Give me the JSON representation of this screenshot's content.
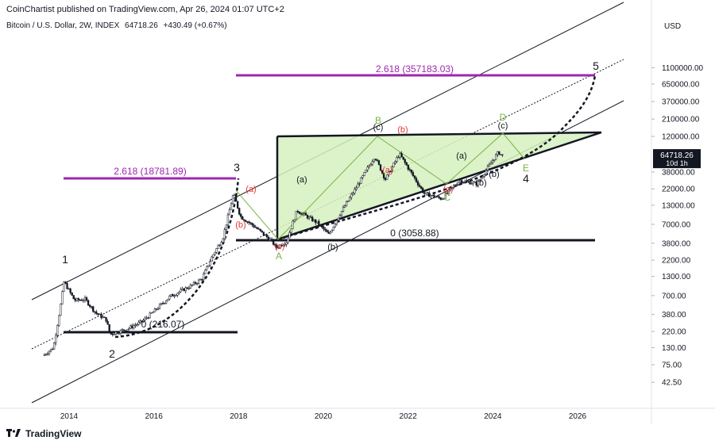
{
  "header": {
    "publisher_line": "CoinChartist published on TradingView.com, Apr 26, 2024 01:07 UTC+2"
  },
  "symbol": {
    "name": "Bitcoin / U.S. Dollar, 2W, INDEX",
    "price": "64718.26",
    "change": "+430.49 (+0.67%)"
  },
  "footer": {
    "brand": "TradingView",
    "logo_icon": "tradingview-logo-icon"
  },
  "colors": {
    "fib_line": "#9c27b0",
    "triangle_fill": "#d6f0c0",
    "label_red": "#e53935",
    "label_green": "#7cb342",
    "candle": "#131722"
  },
  "chart_data": {
    "type": "line",
    "title": "",
    "xlabel": "",
    "ylabel": "",
    "y_scale": "log",
    "currency": "USD",
    "x_ticks": [
      "2014",
      "2016",
      "2018",
      "2020",
      "2022",
      "2024",
      "2026"
    ],
    "y_ticks": [
      "1100000.00",
      "650000.00",
      "370000.00",
      "210000.00",
      "120000.00",
      "38000.00",
      "22000.00",
      "13000.00",
      "7000.00",
      "3800.00",
      "2200.00",
      "1300.00",
      "700.00",
      "380.00",
      "220.00",
      "130.00",
      "75.00",
      "42.50"
    ],
    "last_price": {
      "label": "64718.26",
      "countdown": "10d 1h"
    },
    "series": [
      {
        "values": [
          [
            "2013-06",
            100
          ],
          [
            "2013-09",
            130
          ],
          [
            "2013-11",
            500
          ],
          [
            "2013-12",
            1100
          ],
          [
            "2014-03",
            600
          ],
          [
            "2014-06",
            620
          ],
          [
            "2014-09",
            400
          ],
          [
            "2014-12",
            320
          ],
          [
            "2015-01",
            200
          ],
          [
            "2015-06",
            240
          ],
          [
            "2015-10",
            300
          ],
          [
            "2016-01",
            400
          ],
          [
            "2016-06",
            680
          ],
          [
            "2016-12",
            960
          ],
          [
            "2017-03",
            1200
          ],
          [
            "2017-06",
            2500
          ],
          [
            "2017-09",
            4500
          ],
          [
            "2017-12",
            19000
          ],
          [
            "2018-02",
            9000
          ],
          [
            "2018-06",
            6500
          ],
          [
            "2018-11",
            4000
          ],
          [
            "2018-12",
            3300
          ],
          [
            "2019-03",
            4000
          ],
          [
            "2019-06",
            11000
          ],
          [
            "2019-12",
            7200
          ],
          [
            "2020-03",
            5000
          ],
          [
            "2020-06",
            9500
          ],
          [
            "2020-12",
            29000
          ],
          [
            "2021-04",
            63000
          ],
          [
            "2021-07",
            30000
          ],
          [
            "2021-11",
            68000
          ],
          [
            "2022-06",
            19000
          ],
          [
            "2022-11",
            16000
          ],
          [
            "2023-04",
            29000
          ],
          [
            "2023-09",
            26000
          ],
          [
            "2024-03",
            72000
          ],
          [
            "2024-04",
            64718
          ]
        ]
      }
    ],
    "fib_levels": [
      {
        "label": "2.618 (357183.03)"
      },
      {
        "label": "2.618 (18781.89)"
      },
      {
        "label": "0 (3058.88)"
      },
      {
        "label": "0 (216.07)"
      }
    ],
    "waves_black": [
      "1",
      "2",
      "3",
      "4",
      "5"
    ],
    "waves_small": [
      "(a)",
      "(b)",
      "(c)",
      "(a)",
      "(b)",
      "(c)",
      "(b)",
      "(a)",
      "(c)",
      "(b)",
      "(a)",
      "(b)",
      "(c)",
      "(c)"
    ],
    "waves_green": [
      "A",
      "B",
      "C",
      "D",
      "E"
    ]
  }
}
